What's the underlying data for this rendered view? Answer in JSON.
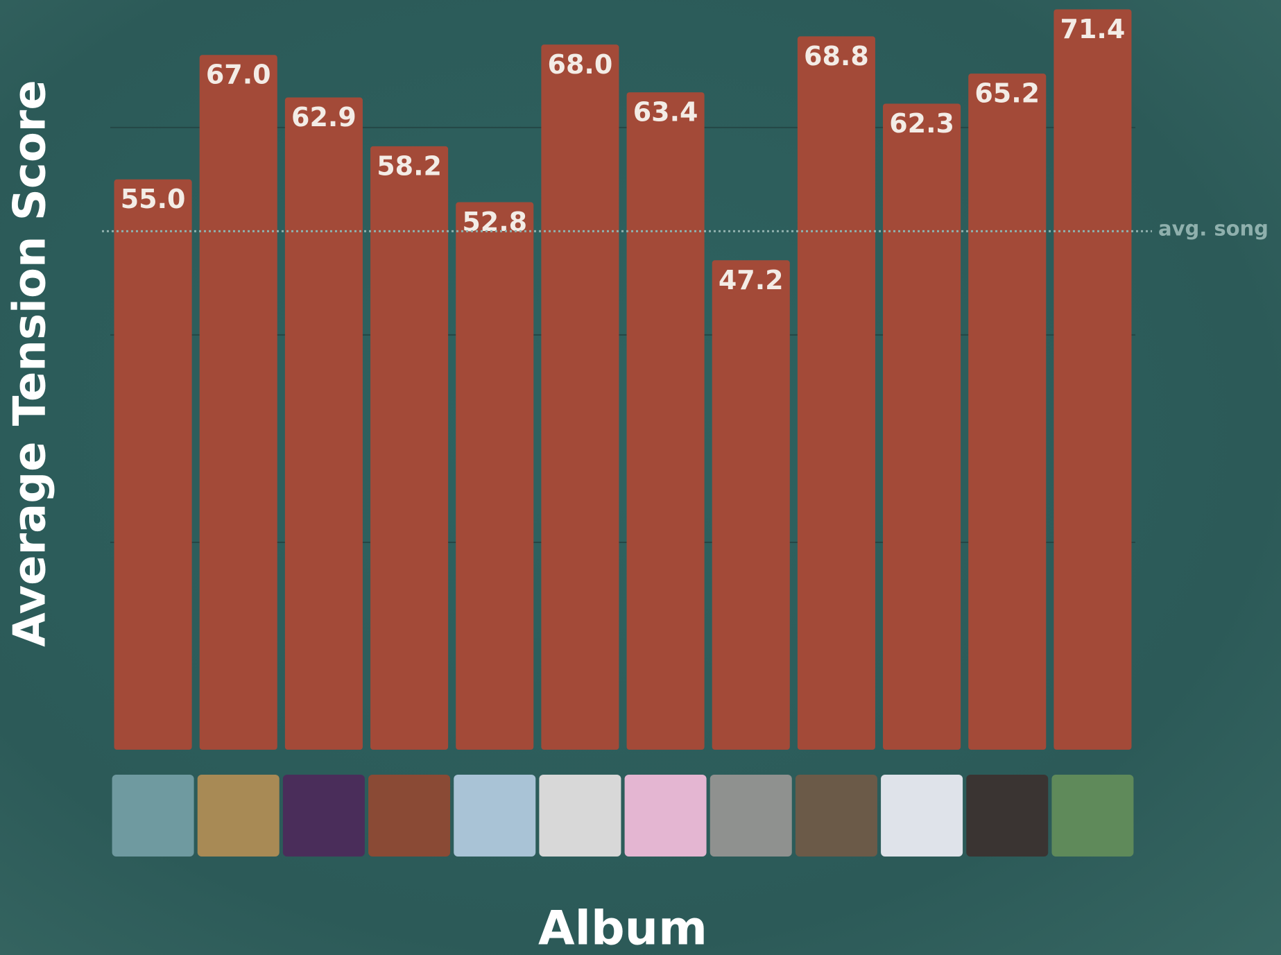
{
  "chart_data": {
    "type": "bar",
    "y_label": "Average Tension Score",
    "x_label": "Album",
    "categories": [
      null,
      null,
      null,
      null,
      null,
      null,
      null,
      null,
      null,
      null,
      null,
      null
    ],
    "values": [
      55.0,
      67.0,
      62.9,
      58.2,
      52.8,
      68.0,
      63.4,
      47.2,
      68.8,
      62.3,
      65.2,
      71.4
    ],
    "value_labels": [
      "55.0",
      "67.0",
      "62.9",
      "58.2",
      "52.8",
      "68.0",
      "63.4",
      "47.2",
      "68.8",
      "62.3",
      "65.2",
      "71.4"
    ],
    "color": "#a34a38",
    "ylim": [
      0,
      72.3
    ],
    "yticks": [
      20,
      40,
      60
    ],
    "show_tick_labels": false,
    "grid": true,
    "reference_line": {
      "value": 50,
      "label": "avg. song"
    }
  }
}
